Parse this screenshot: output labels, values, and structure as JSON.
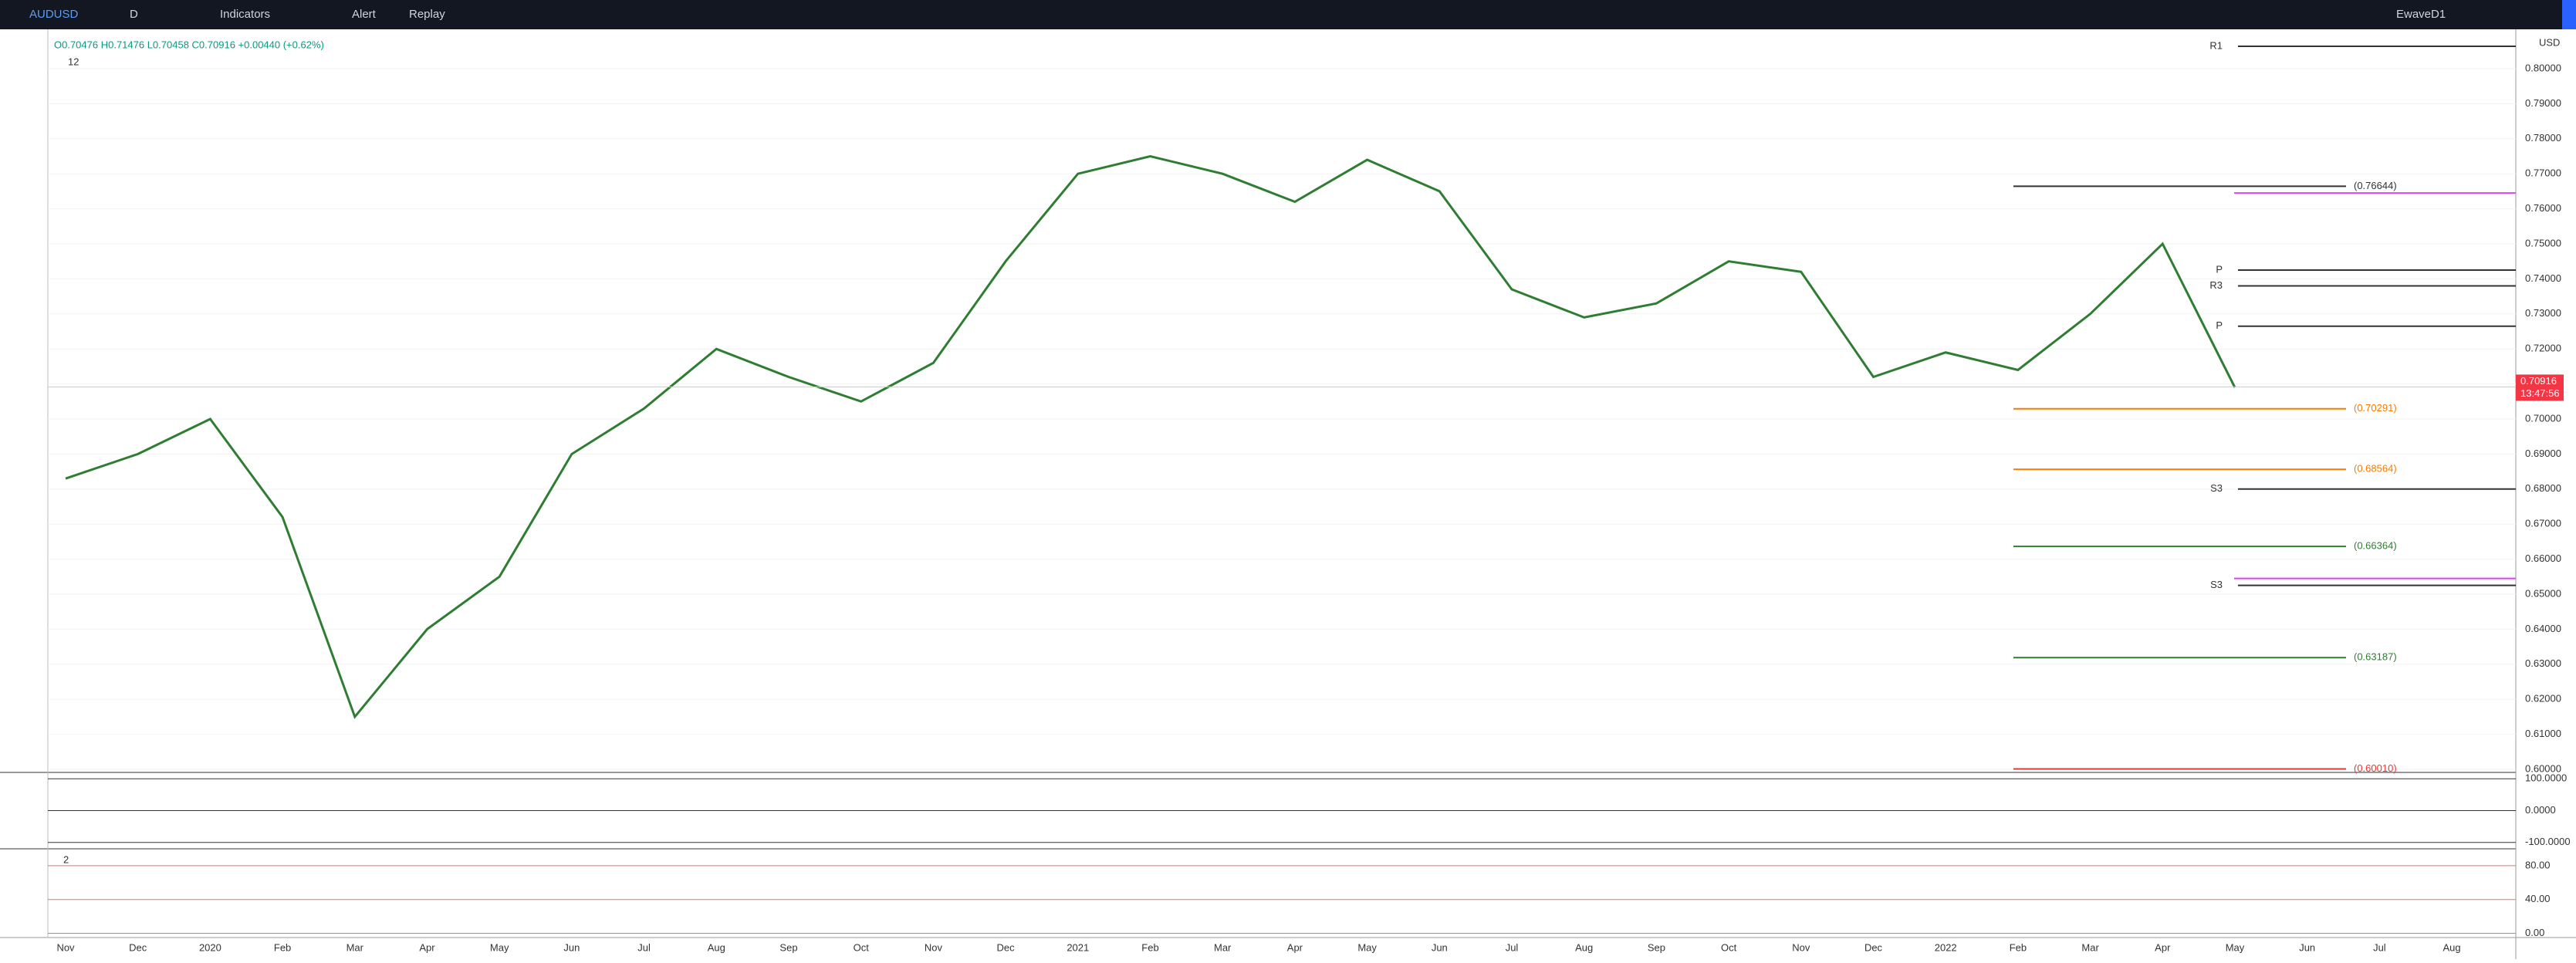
{
  "toolbar": {
    "symbol": "AUDUSD",
    "interval": "D",
    "indicators": "Indicators",
    "alert": "Alert",
    "replay": "Replay",
    "layout": "EwaveD1",
    "currency": "USD"
  },
  "legend": {
    "ohlc": "O0.70476 H0.71476 L0.70458 C0.70916 +0.00440 (+0.62%)",
    "count": "12"
  },
  "chart": {
    "type": "line",
    "color": "#2e7d32",
    "ylim": [
      0.6,
      0.8
    ],
    "yticks": [
      {
        "value": 0.6,
        "label": "0.60000"
      },
      {
        "value": 0.61,
        "label": "0.61000"
      },
      {
        "value": 0.62,
        "label": "0.62000"
      },
      {
        "value": 0.63,
        "label": "0.63000"
      },
      {
        "value": 0.64,
        "label": "0.64000"
      },
      {
        "value": 0.65,
        "label": "0.65000"
      },
      {
        "value": 0.66,
        "label": "0.66000"
      },
      {
        "value": 0.67,
        "label": "0.67000"
      },
      {
        "value": 0.68,
        "label": "0.68000"
      },
      {
        "value": 0.69,
        "label": "0.69000"
      },
      {
        "value": 0.7,
        "label": "0.70000"
      },
      {
        "value": 0.71,
        "label": "0.71000"
      },
      {
        "value": 0.72,
        "label": "0.72000"
      },
      {
        "value": 0.73,
        "label": "0.73000"
      },
      {
        "value": 0.74,
        "label": "0.74000"
      },
      {
        "value": 0.75,
        "label": "0.75000"
      },
      {
        "value": 0.76,
        "label": "0.76000"
      },
      {
        "value": 0.77,
        "label": "0.77000"
      },
      {
        "value": 0.78,
        "label": "0.78000"
      },
      {
        "value": 0.79,
        "label": "0.79000"
      },
      {
        "value": 0.8,
        "label": "0.80000"
      }
    ],
    "categories": [
      "Nov",
      "Dec",
      "2020",
      "Feb",
      "Mar",
      "Apr",
      "May",
      "Jun",
      "Jul",
      "Aug",
      "Sep",
      "Oct",
      "Nov",
      "Dec",
      "2021",
      "Feb",
      "Mar",
      "Apr",
      "May",
      "Jun",
      "Jul",
      "Aug",
      "Sep",
      "Oct",
      "Nov",
      "Dec",
      "2022",
      "Feb",
      "Mar",
      "Apr",
      "May",
      "Jun",
      "Jul",
      "Aug"
    ],
    "values": [
      0.683,
      0.69,
      0.7,
      0.672,
      0.615,
      0.64,
      0.655,
      0.69,
      0.703,
      0.72,
      0.712,
      0.705,
      0.716,
      0.745,
      0.77,
      0.775,
      0.77,
      0.762,
      0.774,
      0.765,
      0.737,
      0.729,
      0.733,
      0.745,
      0.742,
      0.712,
      0.719,
      0.714,
      0.73,
      0.75,
      0.709,
      null,
      null,
      null
    ],
    "last_price": {
      "value": 0.70916,
      "label": "0.70916",
      "countdown": "13:47:56"
    },
    "levels": [
      {
        "label": "(0.76644)",
        "value": 0.76644,
        "color": "#333333"
      },
      {
        "label": "(0.70291)",
        "value": 0.70291,
        "color": "#f57c00"
      },
      {
        "label": "(0.68564)",
        "value": 0.68564,
        "color": "#f57c00"
      },
      {
        "label": "(0.66364)",
        "value": 0.66364,
        "color": "#2e7d32"
      },
      {
        "label": "(0.63187)",
        "value": 0.63187,
        "color": "#2e7d32"
      },
      {
        "label": "(0.60010)",
        "value": 0.6001,
        "color": "#e53935"
      }
    ],
    "pivots": [
      {
        "label": "R1",
        "value": 0.8064
      },
      {
        "label": "P",
        "value": 0.7425
      },
      {
        "label": "R3",
        "value": 0.738
      },
      {
        "label": "P",
        "value": 0.7265
      },
      {
        "label": "S3",
        "value": 0.68
      },
      {
        "label": "S3",
        "value": 0.6525
      }
    ],
    "bands": [
      0.7645,
      0.6545
    ]
  },
  "pane1": {
    "yticks": [
      {
        "value": 100,
        "label": "100.0000"
      },
      {
        "value": 0,
        "label": "0.0000"
      },
      {
        "value": -100,
        "label": "-100.0000"
      }
    ],
    "ylim": [
      -120,
      120
    ]
  },
  "pane2": {
    "count": "2",
    "yticks": [
      {
        "value": 80,
        "label": "80.00"
      },
      {
        "value": 40,
        "label": "40.00"
      },
      {
        "value": 0,
        "label": "0.00"
      }
    ],
    "ylim": [
      -5,
      100
    ]
  }
}
